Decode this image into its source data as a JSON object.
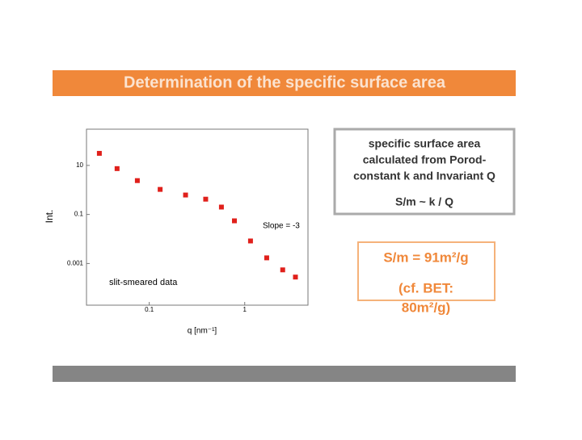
{
  "slide": {
    "title": "Determination of the specific surface area",
    "info_box": {
      "lines": [
        "specific surface area",
        "calculated from Porod-",
        "constant k and Invariant Q"
      ],
      "formula": "S/m ~ k / Q"
    },
    "result_box": {
      "lines": [
        "S/m = 91m²/g",
        "(cf. BET:",
        "80m²/g)"
      ]
    }
  },
  "chart_data": {
    "type": "scatter",
    "xlabel": "q [nm⁻¹]",
    "ylabel": "Int.",
    "annotations": [
      "Slope = -3",
      "slit-smeared data"
    ],
    "x": [
      0.03,
      0.046,
      0.075,
      0.13,
      0.24,
      0.39,
      0.57,
      0.78,
      1.15,
      1.7,
      2.5,
      3.4
    ],
    "values": [
      31,
      7.4,
      2.4,
      1.05,
      0.62,
      0.42,
      0.2,
      0.055,
      0.0083,
      0.0017,
      0.00055,
      0.00028
    ],
    "color": "#e0201b",
    "xscale": "log",
    "yscale": "log",
    "xlim": [
      0.022,
      4.6
    ],
    "ylim": [
      2e-05,
      300
    ],
    "xticks": [
      0.1,
      1
    ],
    "yticks": [
      10,
      0.1,
      0.001
    ]
  }
}
